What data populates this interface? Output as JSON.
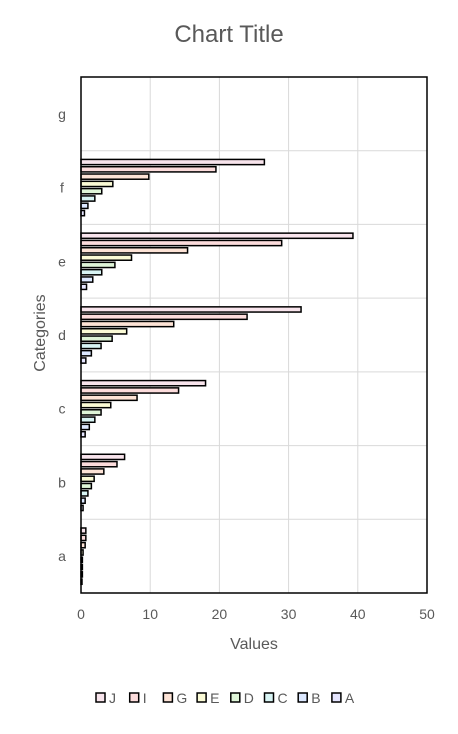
{
  "chart_data": {
    "type": "bar",
    "orientation": "horizontal",
    "title": "Chart Title",
    "xlabel": "Values",
    "ylabel": "Categories",
    "xlim": [
      0,
      50
    ],
    "x_ticks": [
      0,
      10,
      20,
      30,
      40,
      50
    ],
    "grid": true,
    "legend_position": "bottom",
    "categories": [
      "a",
      "b",
      "c",
      "d",
      "e",
      "f",
      "g"
    ],
    "series": [
      {
        "name": "A",
        "color": "#e6e6ff",
        "values": [
          0.1,
          0.3,
          0.6,
          0.7,
          0.8,
          0.5,
          null
        ]
      },
      {
        "name": "B",
        "color": "#dce8ff",
        "values": [
          0.2,
          0.6,
          1.2,
          1.5,
          1.7,
          1.0,
          null
        ]
      },
      {
        "name": "C",
        "color": "#d8f4f4",
        "values": [
          0.2,
          1.0,
          2.0,
          2.9,
          3.0,
          2.0,
          null
        ]
      },
      {
        "name": "D",
        "color": "#dff5d8",
        "values": [
          0.2,
          1.5,
          2.9,
          4.5,
          4.9,
          3.0,
          null
        ]
      },
      {
        "name": "E",
        "color": "#fbfbd6",
        "values": [
          0.3,
          1.9,
          4.3,
          6.6,
          7.3,
          4.6,
          null
        ]
      },
      {
        "name": "G",
        "color": "#fde3d6",
        "values": [
          0.6,
          3.3,
          8.1,
          13.4,
          15.4,
          9.8,
          null
        ]
      },
      {
        "name": "I",
        "color": "#fcdcdc",
        "values": [
          0.7,
          5.2,
          14.1,
          24.0,
          29.0,
          19.5,
          null
        ]
      },
      {
        "name": "J",
        "color": "#f8e4ec",
        "values": [
          0.7,
          6.3,
          18.0,
          31.8,
          39.3,
          26.5,
          null
        ]
      }
    ]
  }
}
